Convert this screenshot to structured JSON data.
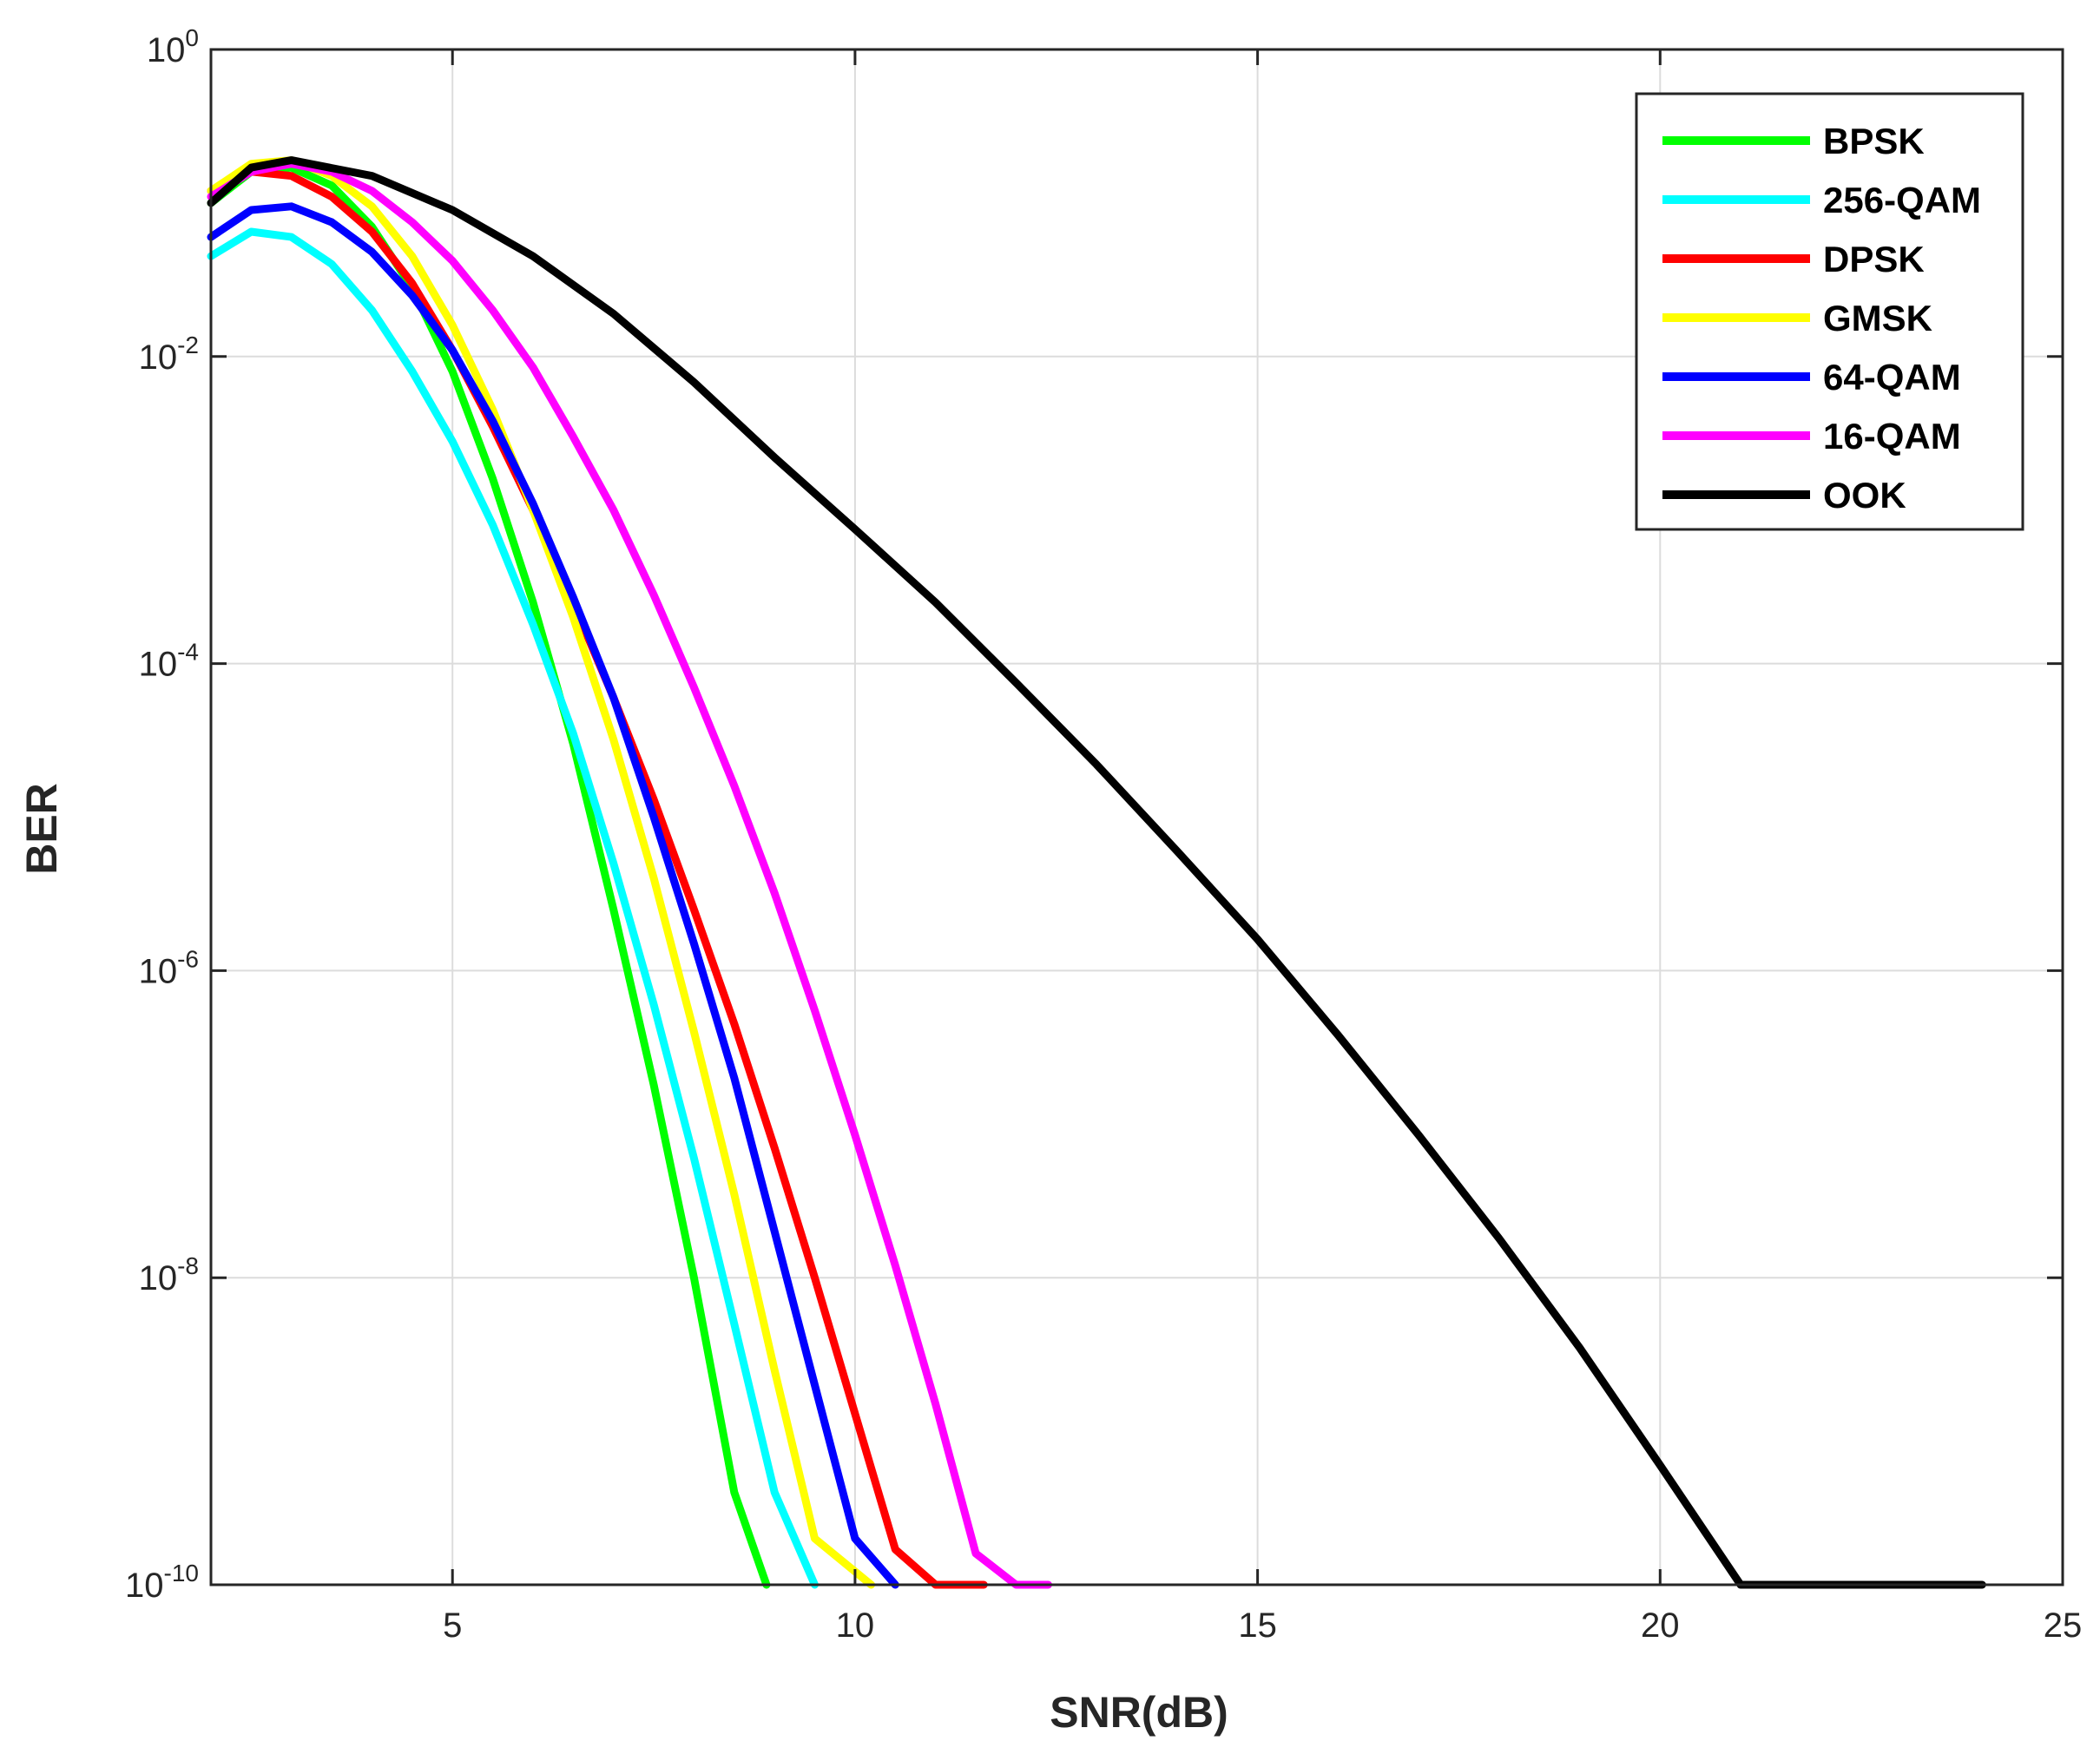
{
  "chart_data": {
    "type": "line",
    "xlabel": "SNR(dB)",
    "ylabel": "BER",
    "xlim": [
      2,
      25
    ],
    "ylim": [
      1e-10,
      1
    ],
    "yscale": "log",
    "xticks": [
      5,
      10,
      15,
      20,
      25
    ],
    "xtick_labels": [
      "5",
      "10",
      "15",
      "20",
      "25"
    ],
    "yticks": [
      0,
      -2,
      -4,
      -6,
      -8,
      -10
    ],
    "ytick_labels": [
      {
        "base": "10",
        "exp": "0"
      },
      {
        "base": "10",
        "exp": "-2"
      },
      {
        "base": "10",
        "exp": "-4"
      },
      {
        "base": "10",
        "exp": "-6"
      },
      {
        "base": "10",
        "exp": "-8"
      },
      {
        "base": "10",
        "exp": "-10"
      }
    ],
    "grid": true,
    "legend_position": "top-right",
    "series": [
      {
        "name": "BPSK",
        "color": "#00ff00",
        "x": [
          2,
          2.5,
          3,
          3.5,
          4,
          4.5,
          5,
          5.5,
          6,
          6.5,
          7,
          7.5,
          8,
          8.5,
          8.9
        ],
        "y": [
          0.1,
          0.16,
          0.17,
          0.13,
          0.07,
          0.028,
          0.008,
          0.0016,
          0.00025,
          3e-05,
          2.5e-06,
          1.8e-07,
          1e-08,
          4e-10,
          1e-10
        ]
      },
      {
        "name": "256-QAM",
        "color": "#00ffff",
        "x": [
          2,
          2.5,
          3,
          3.5,
          4,
          4.5,
          5,
          5.5,
          6,
          6.5,
          7,
          7.5,
          8,
          8.5,
          9,
          9.5
        ],
        "y": [
          0.045,
          0.065,
          0.06,
          0.04,
          0.02,
          0.008,
          0.0028,
          0.0008,
          0.00018,
          3.5e-05,
          5e-06,
          6e-07,
          6e-08,
          5e-09,
          4e-10,
          1e-10
        ]
      },
      {
        "name": "DPSK",
        "color": "#ff0000",
        "x": [
          2,
          2.5,
          3,
          3.5,
          4,
          4.5,
          5,
          5.5,
          6,
          6.5,
          7,
          7.5,
          8,
          8.5,
          9,
          9.5,
          10,
          10.5,
          11,
          11.6
        ],
        "y": [
          0.12,
          0.16,
          0.15,
          0.11,
          0.065,
          0.03,
          0.011,
          0.0035,
          0.001,
          0.00025,
          6e-05,
          1.3e-05,
          2.5e-06,
          4.5e-07,
          7e-08,
          1e-08,
          1.3e-09,
          1.7e-10,
          2e-11,
          1e-10
        ]
      },
      {
        "name": "GMSK",
        "color": "#ffff00",
        "x": [
          2,
          2.5,
          3,
          3.5,
          4,
          4.5,
          5,
          5.5,
          6,
          6.5,
          7,
          7.5,
          8,
          8.5,
          9,
          9.5,
          10.2
        ],
        "y": [
          0.12,
          0.18,
          0.19,
          0.15,
          0.095,
          0.045,
          0.016,
          0.0045,
          0.001,
          0.0002,
          3.2e-05,
          4e-06,
          4e-07,
          3.5e-08,
          2.5e-09,
          2e-10,
          1e-10
        ]
      },
      {
        "name": "64-QAM",
        "color": "#0000ff",
        "x": [
          2,
          2.5,
          3,
          3.5,
          4,
          4.5,
          5,
          5.5,
          6,
          6.5,
          7,
          7.5,
          8,
          8.5,
          9,
          9.5,
          10,
          10.5
        ],
        "y": [
          0.06,
          0.09,
          0.095,
          0.075,
          0.048,
          0.025,
          0.011,
          0.0038,
          0.0011,
          0.00027,
          6e-05,
          1e-05,
          1.5e-06,
          2e-07,
          2e-08,
          2e-09,
          2e-10,
          1e-10
        ]
      },
      {
        "name": "16-QAM",
        "color": "#ff00ff",
        "x": [
          2,
          2.5,
          3,
          3.5,
          4,
          4.5,
          5,
          5.5,
          6,
          6.5,
          7,
          7.5,
          8,
          8.5,
          9,
          9.5,
          10,
          10.5,
          11,
          11.5,
          12,
          12.4
        ],
        "y": [
          0.11,
          0.16,
          0.18,
          0.16,
          0.12,
          0.075,
          0.042,
          0.02,
          0.0085,
          0.003,
          0.001,
          0.00028,
          7e-05,
          1.6e-05,
          3.2e-06,
          5.5e-07,
          8.5e-08,
          1.2e-08,
          1.5e-09,
          1.6e-10,
          1.5e-11,
          1e-10
        ]
      },
      {
        "name": "OOK",
        "color": "#000000",
        "x": [
          2,
          2.5,
          3,
          4,
          5,
          6,
          7,
          8,
          9,
          10,
          11,
          12,
          13,
          14,
          15,
          16,
          17,
          18,
          19,
          20,
          21,
          22,
          23,
          24
        ],
        "y": [
          0.1,
          0.17,
          0.19,
          0.15,
          0.09,
          0.045,
          0.019,
          0.0068,
          0.0022,
          0.00075,
          0.00025,
          7.5e-05,
          2.2e-05,
          6e-06,
          1.6e-06,
          3.8e-07,
          8.5e-08,
          1.8e-08,
          3.5e-09,
          6e-10,
          1e-10,
          1.5e-11,
          2e-12,
          1e-10
        ]
      }
    ]
  }
}
